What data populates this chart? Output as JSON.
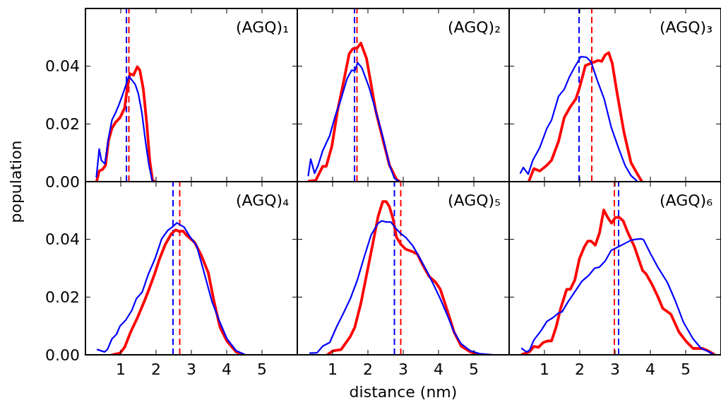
{
  "chart_data": [
    {
      "type": "line",
      "title": "(AGQ)₁",
      "ylabel": "population",
      "xlim": [
        0,
        6
      ],
      "ylim": [
        0,
        0.06
      ],
      "xticks": [
        1,
        2,
        3,
        4,
        5
      ],
      "yticks": [
        {
          "value": 0,
          "label": "0.00"
        },
        0.02,
        0.04
      ],
      "tick_labels": "y",
      "line_style": "solid",
      "ref_lines": [
        {
          "axis": "x",
          "value": 1.23,
          "color": "#ff0000",
          "line_style": "dashed"
        },
        {
          "axis": "x",
          "value": 1.16,
          "color": "#0000ff",
          "line_style": "dashed"
        }
      ],
      "series": [
        {
          "color": "#ff0000",
          "x": [
            0.32,
            0.39,
            0.49,
            0.57,
            0.65,
            0.75,
            0.85,
            0.98,
            1.11,
            1.18,
            1.26,
            1.36,
            1.47,
            1.54,
            1.64,
            1.74,
            1.82,
            1.9,
            1.97
          ],
          "values": [
            0.0002,
            0.0037,
            0.0043,
            0.0057,
            0.014,
            0.0185,
            0.0205,
            0.0222,
            0.0255,
            0.032,
            0.0374,
            0.0369,
            0.0398,
            0.0386,
            0.032,
            0.0197,
            0.0074,
            0.0004,
            0
          ]
        },
        {
          "color": "#0000ff",
          "x": [
            0.31,
            0.39,
            0.45,
            0.55,
            0.65,
            0.75,
            0.85,
            0.95,
            1.05,
            1.14,
            1.23,
            1.31,
            1.41,
            1.5,
            1.6,
            1.7,
            1.8,
            1.89,
            1.93
          ],
          "values": [
            0.0016,
            0.0113,
            0.0074,
            0.0062,
            0.0148,
            0.0213,
            0.0238,
            0.0267,
            0.03,
            0.0332,
            0.0365,
            0.0353,
            0.0337,
            0.0304,
            0.0238,
            0.014,
            0.0057,
            0.0004,
            0
          ]
        }
      ]
    },
    {
      "type": "line",
      "title": "(AGQ)₂",
      "xlim": [
        0,
        6
      ],
      "ylim": [
        0,
        0.06
      ],
      "xticks": [
        1,
        2,
        3,
        4,
        5
      ],
      "yticks": [
        0,
        0.02,
        0.04
      ],
      "tick_labels": false,
      "line_style": "solid",
      "ref_lines": [
        {
          "axis": "x",
          "value": 1.69,
          "color": "#ff0000",
          "line_style": "dashed"
        },
        {
          "axis": "x",
          "value": 1.62,
          "color": "#0000ff",
          "line_style": "dashed"
        }
      ],
      "series": [
        {
          "color": "#ff0000",
          "x": [
            0.33,
            0.52,
            0.72,
            0.82,
            0.98,
            1.14,
            1.31,
            1.47,
            1.57,
            1.7,
            1.8,
            1.86,
            1.96,
            2.09,
            2.22,
            2.42,
            2.61,
            2.81,
            2.91
          ],
          "values": [
            0.0002,
            0.0004,
            0.0053,
            0.0053,
            0.0123,
            0.0246,
            0.0345,
            0.0443,
            0.046,
            0.0464,
            0.048,
            0.046,
            0.0427,
            0.0337,
            0.0246,
            0.0148,
            0.0057,
            0.0008,
            0
          ]
        },
        {
          "color": "#0000ff",
          "x": [
            0.31,
            0.38,
            0.49,
            0.59,
            0.72,
            0.92,
            1.08,
            1.24,
            1.41,
            1.54,
            1.63,
            1.71,
            1.83,
            2.03,
            2.22,
            2.42,
            2.61,
            2.75,
            2.88
          ],
          "values": [
            0.0021,
            0.0078,
            0.0029,
            0.0057,
            0.0107,
            0.016,
            0.023,
            0.0287,
            0.0357,
            0.0386,
            0.0384,
            0.0412,
            0.0394,
            0.0328,
            0.0246,
            0.0156,
            0.0057,
            0.0012,
            0
          ]
        }
      ]
    },
    {
      "type": "line",
      "title": "(AGQ)₃",
      "xlim": [
        0,
        6
      ],
      "ylim": [
        0,
        0.06
      ],
      "xticks": [
        1,
        2,
        3,
        4,
        5
      ],
      "yticks": [
        0,
        0.02,
        0.04
      ],
      "tick_labels": false,
      "line_style": "solid",
      "ref_lines": [
        {
          "axis": "x",
          "value": 2.34,
          "color": "#ff0000",
          "line_style": "dashed"
        },
        {
          "axis": "x",
          "value": 1.98,
          "color": "#0000ff",
          "line_style": "dashed"
        }
      ],
      "series": [
        {
          "color": "#ff0000",
          "x": [
            0.56,
            0.7,
            0.87,
            1.07,
            1.2,
            1.4,
            1.56,
            1.73,
            1.89,
            1.99,
            2.16,
            2.32,
            2.52,
            2.62,
            2.72,
            2.82,
            2.92,
            3.05,
            3.25,
            3.45,
            3.62,
            3.75
          ],
          "values": [
            0.0002,
            0.0045,
            0.0037,
            0.0057,
            0.0074,
            0.014,
            0.0222,
            0.0259,
            0.0287,
            0.0324,
            0.0402,
            0.041,
            0.042,
            0.0417,
            0.0439,
            0.0447,
            0.041,
            0.0312,
            0.0172,
            0.0066,
            0.0029,
            0.0002
          ]
        },
        {
          "color": "#0000ff",
          "x": [
            0.32,
            0.4,
            0.54,
            0.67,
            0.87,
            1.07,
            1.2,
            1.4,
            1.56,
            1.7,
            1.86,
            2.03,
            2.19,
            2.32,
            2.49,
            2.69,
            2.89,
            3.09,
            3.28,
            3.45,
            3.62
          ],
          "values": [
            0.003,
            0.0049,
            0.0026,
            0.0074,
            0.0119,
            0.0185,
            0.0213,
            0.0296,
            0.032,
            0.0361,
            0.0398,
            0.0433,
            0.0431,
            0.0415,
            0.0353,
            0.0287,
            0.0189,
            0.0119,
            0.0057,
            0.0021,
            0.0002
          ]
        }
      ]
    },
    {
      "type": "line",
      "title": "(AGQ)₄",
      "xlim": [
        0,
        6
      ],
      "ylim": [
        0,
        0.06
      ],
      "xticks": [
        1,
        2,
        3,
        4,
        5
      ],
      "yticks": [
        {
          "value": 0,
          "label": "0.00"
        },
        0.02,
        0.04
      ],
      "line_style": "solid",
      "ref_lines": [
        {
          "axis": "x",
          "value": 2.67,
          "color": "#ff0000",
          "line_style": "dashed"
        },
        {
          "axis": "x",
          "value": 2.48,
          "color": "#0000ff",
          "line_style": "dashed"
        }
      ],
      "series": [
        {
          "color": "#ff0000",
          "x": [
            0.75,
            0.98,
            1.11,
            1.28,
            1.47,
            1.67,
            1.8,
            1.97,
            2.1,
            2.26,
            2.43,
            2.56,
            2.66,
            2.76,
            2.89,
            3.09,
            3.28,
            3.48,
            3.64,
            3.81,
            4.01,
            4.27,
            4.47
          ],
          "values": [
            0,
            0.0006,
            0.0026,
            0.0079,
            0.0128,
            0.0186,
            0.0227,
            0.0284,
            0.0333,
            0.0382,
            0.0419,
            0.0433,
            0.0427,
            0.0429,
            0.0411,
            0.039,
            0.0345,
            0.0284,
            0.0186,
            0.0096,
            0.0047,
            0.001,
            0
          ]
        },
        {
          "color": "#0000ff",
          "x": [
            0.34,
            0.54,
            0.62,
            0.75,
            0.88,
            0.98,
            1.14,
            1.31,
            1.44,
            1.61,
            1.77,
            1.97,
            2.16,
            2.33,
            2.46,
            2.59,
            2.79,
            2.95,
            3.15,
            3.38,
            3.58,
            3.81,
            4.01,
            4.27,
            4.53
          ],
          "values": [
            0.0018,
            0.001,
            0.0018,
            0.0055,
            0.0071,
            0.01,
            0.012,
            0.0153,
            0.0194,
            0.0218,
            0.0276,
            0.0333,
            0.0402,
            0.0431,
            0.0443,
            0.0457,
            0.0443,
            0.0411,
            0.0378,
            0.0276,
            0.0186,
            0.0112,
            0.0055,
            0.0014,
            0
          ]
        }
      ]
    },
    {
      "type": "line",
      "title": "(AGQ)₅",
      "xlabel": "distance (nm)",
      "xlim": [
        0,
        6
      ],
      "ylim": [
        0,
        0.06
      ],
      "xticks": [
        1,
        2,
        3,
        4,
        5
      ],
      "yticks": [
        0,
        0.02,
        0.04
      ],
      "tick_labels": "x",
      "line_style": "solid",
      "ref_lines": [
        {
          "axis": "x",
          "value": 2.93,
          "color": "#ff0000",
          "line_style": "dashed"
        },
        {
          "axis": "x",
          "value": 2.75,
          "color": "#0000ff",
          "line_style": "dashed"
        }
      ],
      "series": [
        {
          "color": "#ff0000",
          "x": [
            0.85,
            1.01,
            1.24,
            1.5,
            1.63,
            1.8,
            1.96,
            2.12,
            2.29,
            2.42,
            2.52,
            2.61,
            2.71,
            2.81,
            2.94,
            3.07,
            3.27,
            3.4,
            3.53,
            3.73,
            3.92,
            4.05,
            4.25,
            4.44,
            4.64,
            4.9,
            5.16
          ],
          "values": [
            0,
            0.0014,
            0.0018,
            0.0063,
            0.0096,
            0.0178,
            0.0276,
            0.0374,
            0.048,
            0.0531,
            0.0531,
            0.0513,
            0.0472,
            0.0407,
            0.0382,
            0.0366,
            0.0357,
            0.0349,
            0.0317,
            0.0272,
            0.0251,
            0.0227,
            0.0153,
            0.0079,
            0.003,
            0.001,
            0
          ]
        },
        {
          "color": "#0000ff",
          "x": [
            0.36,
            0.56,
            0.72,
            0.92,
            1.11,
            1.31,
            1.5,
            1.7,
            1.9,
            2.09,
            2.29,
            2.39,
            2.52,
            2.65,
            2.81,
            2.94,
            3.07,
            3.27,
            3.46,
            3.66,
            3.86,
            4.05,
            4.25,
            4.44,
            4.64,
            4.9,
            5.16,
            5.56
          ],
          "values": [
            0.0006,
            0.0007,
            0.003,
            0.0043,
            0.0096,
            0.0145,
            0.0194,
            0.0259,
            0.0341,
            0.0415,
            0.0456,
            0.0464,
            0.046,
            0.046,
            0.0435,
            0.0419,
            0.0407,
            0.0378,
            0.0337,
            0.0292,
            0.0243,
            0.0194,
            0.0137,
            0.0079,
            0.0038,
            0.0014,
            0.0004,
            0
          ]
        }
      ]
    },
    {
      "type": "line",
      "title": "(AGQ)₆",
      "xlim": [
        0,
        6
      ],
      "ylim": [
        0,
        0.06
      ],
      "xticks": [
        1,
        2,
        3,
        4,
        5
      ],
      "yticks": [
        0,
        0.02,
        0.04
      ],
      "tick_labels": "x",
      "line_style": "solid",
      "ref_lines": [
        {
          "axis": "x",
          "value": 2.98,
          "color": "#ff0000",
          "line_style": "dashed"
        },
        {
          "axis": "x",
          "value": 3.1,
          "color": "#0000ff",
          "line_style": "dashed"
        }
      ],
      "series": [
        {
          "color": "#ff0000",
          "x": [
            0.37,
            0.57,
            0.7,
            0.83,
            0.97,
            1.1,
            1.2,
            1.33,
            1.46,
            1.63,
            1.73,
            1.86,
            1.99,
            2.13,
            2.23,
            2.32,
            2.44,
            2.56,
            2.68,
            2.79,
            2.9,
            3.01,
            3.12,
            3.23,
            3.35,
            3.55,
            3.78,
            3.88,
            4.05,
            4.21,
            4.35,
            4.58,
            4.81,
            5.01,
            5.21,
            5.47,
            5.6,
            5.8
          ],
          "values": [
            0.0002,
            0.001,
            0.0029,
            0.0026,
            0.0043,
            0.0048,
            0.0048,
            0.0096,
            0.0161,
            0.0227,
            0.0227,
            0.0259,
            0.0333,
            0.0374,
            0.0394,
            0.0394,
            0.038,
            0.0423,
            0.0502,
            0.0476,
            0.0456,
            0.0476,
            0.0476,
            0.0464,
            0.0427,
            0.0374,
            0.0292,
            0.028,
            0.0243,
            0.0202,
            0.0161,
            0.0141,
            0.0079,
            0.0047,
            0.0022,
            0.0022,
            0.0016,
            0.0002
          ]
        },
        {
          "color": "#0000ff",
          "x": [
            0.36,
            0.49,
            0.58,
            0.7,
            0.9,
            1.07,
            1.23,
            1.4,
            1.5,
            1.66,
            1.86,
            2.06,
            2.26,
            2.42,
            2.56,
            2.72,
            2.89,
            3.09,
            3.28,
            3.45,
            3.58,
            3.75,
            3.81,
            4.01,
            4.21,
            4.48,
            4.71,
            4.94,
            5.21,
            5.44,
            5.6,
            5.8
          ],
          "values": [
            0.0022,
            0.001,
            0.0016,
            0.0051,
            0.0083,
            0.0116,
            0.0128,
            0.0145,
            0.0149,
            0.0182,
            0.0218,
            0.0255,
            0.0276,
            0.03,
            0.0304,
            0.0325,
            0.0362,
            0.0374,
            0.0386,
            0.0397,
            0.04,
            0.0402,
            0.0398,
            0.0349,
            0.0304,
            0.0251,
            0.0186,
            0.0112,
            0.0055,
            0.0022,
            0.0014,
            0
          ]
        }
      ]
    }
  ]
}
